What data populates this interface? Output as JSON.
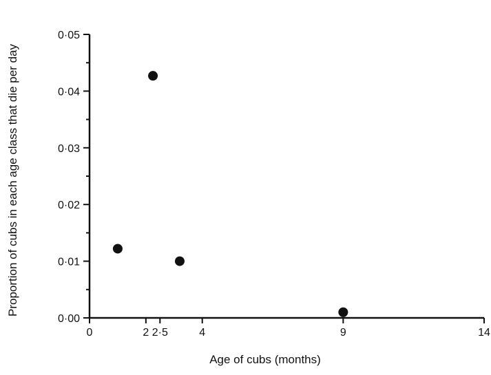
{
  "chart_data": {
    "type": "scatter",
    "title": "",
    "xlabel": "Age of cubs (months)",
    "ylabel": "Proportion of cubs in each age class that die per day",
    "xlim": [
      0,
      14
    ],
    "ylim": [
      0,
      0.05
    ],
    "x_ticks": [
      {
        "value": 0,
        "label": "0"
      },
      {
        "value": 2,
        "label": "2"
      },
      {
        "value": 2.5,
        "label": "2·5"
      },
      {
        "value": 4,
        "label": "4"
      },
      {
        "value": 9,
        "label": "9"
      },
      {
        "value": 14,
        "label": "14"
      }
    ],
    "y_ticks": [
      {
        "value": 0,
        "label": "0·00"
      },
      {
        "value": 0.01,
        "label": "0·01"
      },
      {
        "value": 0.02,
        "label": "0·02"
      },
      {
        "value": 0.03,
        "label": "0·03"
      },
      {
        "value": 0.04,
        "label": "0·04"
      },
      {
        "value": 0.05,
        "label": "0·05"
      }
    ],
    "y_minor_step": 0.005,
    "grid": false,
    "legend": "none",
    "point_color": "#111111",
    "series": [
      {
        "x": [
          1.0,
          2.25,
          3.2,
          9.0
        ],
        "y": [
          0.0122,
          0.0427,
          0.01,
          0.001
        ]
      }
    ]
  }
}
